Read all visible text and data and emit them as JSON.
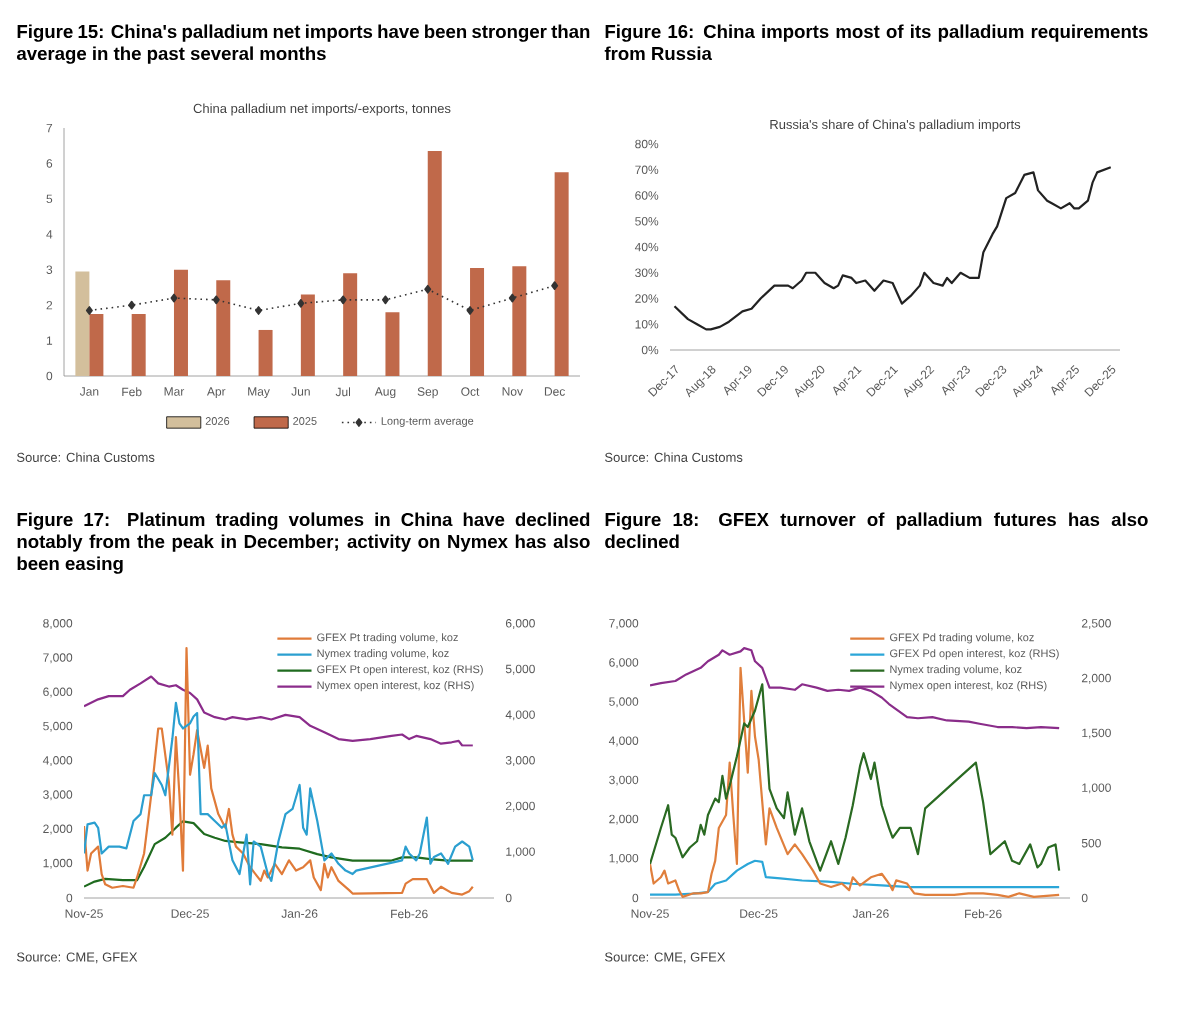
{
  "chart_data": [
    {
      "type": "bar",
      "title": "Figure 15: China's palladium net imports have been stronger than average in the past several months",
      "subtitle": "China palladium net imports/-exports, tonnes",
      "categories": [
        "Jan",
        "Feb",
        "Mar",
        "Apr",
        "May",
        "Jun",
        "Jul",
        "Aug",
        "Sep",
        "Oct",
        "Nov",
        "Dec"
      ],
      "series": [
        {
          "name": "2026",
          "color": "#d3bf9c",
          "values": [
            2.95,
            null,
            null,
            null,
            null,
            null,
            null,
            null,
            null,
            null,
            null,
            null
          ]
        },
        {
          "name": "2025",
          "color": "#c0694a",
          "values": [
            1.75,
            1.75,
            3.0,
            2.7,
            1.3,
            2.3,
            2.9,
            1.8,
            6.35,
            3.05,
            3.1,
            5.75
          ]
        },
        {
          "name": "Long-term average",
          "type": "line",
          "color": "#333333",
          "marker": "diamond",
          "line_style": "dotted",
          "values": [
            1.85,
            2.0,
            2.2,
            2.15,
            1.85,
            2.05,
            2.15,
            2.15,
            2.45,
            1.85,
            2.2,
            2.55
          ]
        }
      ],
      "ylim": [
        0,
        7
      ],
      "yticks": [
        0,
        1,
        2,
        3,
        4,
        5,
        6,
        7
      ],
      "legend": "bottom",
      "annotations": [
        "Source: China Customs"
      ]
    },
    {
      "type": "line",
      "title": "Figure 16: China imports most of its palladium requirements from Russia",
      "subtitle": "Russia's share of China's palladium imports",
      "x": [
        "2017-12",
        "2018-03",
        "2018-05",
        "2018-07",
        "2018-08",
        "2018-10",
        "2018-12",
        "2019-03",
        "2019-05",
        "2019-07",
        "2019-10",
        "2020-01",
        "2020-02",
        "2020-04",
        "2020-05",
        "2020-07",
        "2020-09",
        "2020-11",
        "2020-12",
        "2021-01",
        "2021-03",
        "2021-04",
        "2021-06",
        "2021-08",
        "2021-10",
        "2021-12",
        "2022-02",
        "2022-04",
        "2022-06",
        "2022-07",
        "2022-09",
        "2022-11",
        "2022-12",
        "2023-01",
        "2023-03",
        "2023-05",
        "2023-07",
        "2023-08",
        "2023-10",
        "2023-11",
        "2024-01",
        "2024-03",
        "2024-05",
        "2024-07",
        "2024-08",
        "2024-10",
        "2024-11",
        "2025-01",
        "2025-03",
        "2025-04",
        "2025-05",
        "2025-07",
        "2025-08",
        "2025-09",
        "2025-12"
      ],
      "series": [
        {
          "color": "#222222",
          "values": [
            17,
            12,
            10,
            8,
            8,
            9,
            11,
            15,
            16,
            20,
            25,
            25,
            24,
            27,
            30,
            30,
            26,
            24,
            25,
            29,
            28,
            26,
            27,
            23,
            27,
            26,
            18,
            21,
            25,
            30,
            26,
            25,
            28,
            26,
            30,
            28,
            28,
            38,
            45,
            48,
            59,
            61,
            68,
            69,
            62,
            58,
            57,
            55,
            57,
            55,
            55,
            58,
            65,
            69,
            71
          ]
        }
      ],
      "xlim": [
        "2017-11",
        "2026-02"
      ],
      "xticks": [
        {
          "value": "2017-12",
          "label": "Dec-17"
        },
        {
          "value": "2018-08",
          "label": "Aug-18"
        },
        {
          "value": "2019-04",
          "label": "Apr-19"
        },
        {
          "value": "2019-12",
          "label": "Dec-19"
        },
        {
          "value": "2020-08",
          "label": "Aug-20"
        },
        {
          "value": "2021-04",
          "label": "Apr-21"
        },
        {
          "value": "2021-12",
          "label": "Dec-21"
        },
        {
          "value": "2022-08",
          "label": "Aug-22"
        },
        {
          "value": "2023-04",
          "label": "Apr-23"
        },
        {
          "value": "2023-12",
          "label": "Dec-23"
        },
        {
          "value": "2024-08",
          "label": "Aug-24"
        },
        {
          "value": "2025-04",
          "label": "Apr-25"
        },
        {
          "value": "2025-12",
          "label": "Dec-25"
        }
      ],
      "ylim": [
        0,
        80
      ],
      "yticks": [
        {
          "value": 0,
          "label": "0%"
        },
        {
          "value": 10,
          "label": "10%"
        },
        {
          "value": 20,
          "label": "20%"
        },
        {
          "value": 30,
          "label": "30%"
        },
        {
          "value": 40,
          "label": "40%"
        },
        {
          "value": 50,
          "label": "50%"
        },
        {
          "value": 60,
          "label": "60%"
        },
        {
          "value": 70,
          "label": "70%"
        },
        {
          "value": 80,
          "label": "80%"
        }
      ],
      "annotations": [
        "Source: China Customs"
      ]
    },
    {
      "type": "line",
      "title": "Figure 17: Platinum trading volumes in China have declined notably from the peak in December; activity on Nymex has also been easing",
      "series": [
        {
          "name": "GFEX Pt trading volume, koz",
          "color": "#e07b39",
          "x": [
            "2025-11-01",
            "2025-11-02",
            "2025-11-03",
            "2025-11-05",
            "2025-11-06",
            "2025-11-07",
            "2025-11-09",
            "2025-11-12",
            "2025-11-15",
            "2025-11-16",
            "2025-11-18",
            "2025-11-20",
            "2025-11-22",
            "2025-11-23",
            "2025-11-25",
            "2025-11-26",
            "2025-11-27",
            "2025-11-28",
            "2025-11-29",
            "2025-11-30",
            "2025-12-01",
            "2025-12-02",
            "2025-12-03",
            "2025-12-05",
            "2025-12-06",
            "2025-12-07",
            "2025-12-09",
            "2025-12-11",
            "2025-12-12",
            "2025-12-13",
            "2025-12-14",
            "2025-12-16",
            "2025-12-18",
            "2025-12-21",
            "2025-12-22",
            "2025-12-23",
            "2025-12-25",
            "2025-12-27",
            "2025-12-29",
            "2025-12-31",
            "2026-01-02",
            "2026-01-04",
            "2026-01-05",
            "2026-01-07",
            "2026-01-08",
            "2026-01-09",
            "2026-01-10",
            "2026-01-12",
            "2026-01-15",
            "2026-01-16",
            "2026-01-30",
            "2026-01-31",
            "2026-02-02",
            "2026-02-06",
            "2026-02-08",
            "2026-02-10",
            "2026-02-13",
            "2026-02-16",
            "2026-02-18",
            "2026-02-19"
          ],
          "values": [
            2100,
            800,
            1300,
            1500,
            700,
            400,
            300,
            350,
            300,
            600,
            1300,
            3000,
            4950,
            4950,
            3400,
            1850,
            4700,
            3000,
            800,
            7300,
            3600,
            4200,
            4900,
            3800,
            4450,
            3200,
            2450,
            2050,
            2600,
            1850,
            1500,
            1300,
            900,
            500,
            800,
            600,
            1000,
            700,
            1100,
            800,
            900,
            1100,
            600,
            230,
            1000,
            600,
            900,
            500,
            230,
            130,
            150,
            420,
            550,
            550,
            150,
            330,
            150,
            100,
            200,
            330
          ]
        },
        {
          "name": "Nymex trading volume, koz",
          "color": "#2b9fd0",
          "x": [
            "2025-11-01",
            "2025-11-02",
            "2025-11-04",
            "2025-11-05",
            "2025-11-06",
            "2025-11-08",
            "2025-11-11",
            "2025-11-13",
            "2025-11-15",
            "2025-11-17",
            "2025-11-18",
            "2025-11-20",
            "2025-11-21",
            "2025-11-23",
            "2025-11-24",
            "2025-11-26",
            "2025-11-27",
            "2025-11-28",
            "2025-11-29",
            "2025-12-01",
            "2025-12-02",
            "2025-12-03",
            "2025-12-04",
            "2025-12-06",
            "2025-12-08",
            "2025-12-10",
            "2025-12-11",
            "2025-12-13",
            "2025-12-15",
            "2025-12-17",
            "2025-12-18",
            "2025-12-19",
            "2025-12-21",
            "2025-12-23",
            "2025-12-24",
            "2025-12-26",
            "2025-12-28",
            "2025-12-30",
            "2026-01-01",
            "2026-01-02",
            "2026-01-03",
            "2026-01-04",
            "2026-01-06",
            "2026-01-08",
            "2026-01-10",
            "2026-01-12",
            "2026-01-14",
            "2026-01-16",
            "2026-01-17",
            "2026-01-30",
            "2026-01-31",
            "2026-02-01",
            "2026-02-03",
            "2026-02-04",
            "2026-02-06",
            "2026-02-07",
            "2026-02-08",
            "2026-02-10",
            "2026-02-12",
            "2026-02-14",
            "2026-02-16",
            "2026-02-18",
            "2026-02-19"
          ],
          "values": [
            1300,
            2150,
            2200,
            2050,
            1300,
            1500,
            1500,
            1450,
            2250,
            2450,
            3000,
            3000,
            3650,
            3300,
            3000,
            4650,
            5700,
            5100,
            4950,
            5100,
            5300,
            5400,
            2450,
            2450,
            2250,
            2050,
            2150,
            1100,
            700,
            1850,
            400,
            1650,
            1500,
            700,
            500,
            1650,
            2450,
            2600,
            3300,
            2050,
            1850,
            3200,
            2250,
            1100,
            1300,
            1000,
            800,
            700,
            800,
            1100,
            1500,
            1300,
            1100,
            1300,
            2350,
            1000,
            1200,
            1300,
            1000,
            1500,
            1650,
            1500,
            1100
          ]
        },
        {
          "name": "GFEX Pt open interest, koz (RHS)",
          "color": "#1f6b1f",
          "axis": "y2",
          "x": [
            "2025-11-01",
            "2025-11-04",
            "2025-11-07",
            "2025-11-12",
            "2025-11-16",
            "2025-11-18",
            "2025-11-21",
            "2025-11-24",
            "2025-11-27",
            "2025-11-29",
            "2025-12-02",
            "2025-12-05",
            "2025-12-08",
            "2025-12-11",
            "2025-12-15",
            "2025-12-21",
            "2025-12-27",
            "2026-01-01",
            "2026-01-06",
            "2026-01-10",
            "2026-01-16",
            "2026-01-21",
            "2026-01-27",
            "2026-01-30",
            "2026-02-03",
            "2026-02-07",
            "2026-02-12",
            "2026-02-19"
          ],
          "values": [
            250,
            360,
            420,
            390,
            390,
            680,
            1180,
            1320,
            1540,
            1680,
            1640,
            1400,
            1320,
            1250,
            1220,
            1180,
            1110,
            1080,
            960,
            890,
            820,
            820,
            820,
            890,
            890,
            850,
            820,
            820
          ]
        },
        {
          "name": "Nymex open interest, koz (RHS)",
          "color": "#8b2c8b",
          "axis": "y2",
          "x": [
            "2025-11-01",
            "2025-11-05",
            "2025-11-08",
            "2025-11-12",
            "2025-11-14",
            "2025-11-17",
            "2025-11-20",
            "2025-11-22",
            "2025-11-25",
            "2025-11-27",
            "2025-11-29",
            "2025-12-01",
            "2025-12-03",
            "2025-12-05",
            "2025-12-08",
            "2025-12-11",
            "2025-12-13",
            "2025-12-17",
            "2025-12-21",
            "2025-12-24",
            "2025-12-28",
            "2026-01-01",
            "2026-01-04",
            "2026-01-08",
            "2026-01-12",
            "2026-01-16",
            "2026-01-21",
            "2026-01-27",
            "2026-01-30",
            "2026-02-01",
            "2026-02-03",
            "2026-02-07",
            "2026-02-10",
            "2026-02-13",
            "2026-02-15",
            "2026-02-16",
            "2026-02-19"
          ],
          "values": [
            4200,
            4350,
            4420,
            4420,
            4560,
            4700,
            4850,
            4700,
            4630,
            4660,
            4560,
            4490,
            4350,
            4060,
            3960,
            3910,
            3960,
            3910,
            3960,
            3910,
            4010,
            3960,
            3770,
            3630,
            3480,
            3440,
            3480,
            3550,
            3580,
            3480,
            3550,
            3480,
            3380,
            3410,
            3440,
            3340,
            3340
          ]
        }
      ],
      "xlim": [
        "2025-11-01",
        "2026-02-25"
      ],
      "xticks": [
        {
          "value": "2025-11-01",
          "label": "Nov-25"
        },
        {
          "value": "2025-12-01",
          "label": "Dec-25"
        },
        {
          "value": "2026-01-01",
          "label": "Jan-26"
        },
        {
          "value": "2026-02-01",
          "label": "Feb-26"
        }
      ],
      "ylim": [
        0,
        8000
      ],
      "yticks": [
        0,
        {
          "value": 1000,
          "label": "1,000"
        },
        {
          "value": 2000,
          "label": "2,000"
        },
        {
          "value": 3000,
          "label": "3,000"
        },
        {
          "value": 4000,
          "label": "4,000"
        },
        {
          "value": 5000,
          "label": "5,000"
        },
        {
          "value": 6000,
          "label": "6,000"
        },
        {
          "value": 7000,
          "label": "7,000"
        },
        {
          "value": 8000,
          "label": "8,000"
        }
      ],
      "y2lim": [
        0,
        6000
      ],
      "y2ticks": [
        0,
        {
          "value": 1000,
          "label": "1,000"
        },
        {
          "value": 2000,
          "label": "2,000"
        },
        {
          "value": 3000,
          "label": "3,000"
        },
        {
          "value": 4000,
          "label": "4,000"
        },
        {
          "value": 5000,
          "label": "5,000"
        },
        {
          "value": 6000,
          "label": "6,000"
        }
      ],
      "legend": "top right",
      "annotations": [
        "Source: CME, GFEX"
      ]
    },
    {
      "type": "line",
      "title": "Figure 18: GFEX turnover of palladium futures has also declined",
      "series": [
        {
          "name": "GFEX Pd trading volume, koz",
          "color": "#e07f3c",
          "x": [
            "2025-11-01",
            "2025-11-02",
            "2025-11-04",
            "2025-11-05",
            "2025-11-06",
            "2025-11-08",
            "2025-11-09",
            "2025-11-10",
            "2025-11-13",
            "2025-11-15",
            "2025-11-17",
            "2025-11-18",
            "2025-11-19",
            "2025-11-20",
            "2025-11-22",
            "2025-11-23",
            "2025-11-24",
            "2025-11-25",
            "2025-11-26",
            "2025-11-28",
            "2025-11-29",
            "2025-11-30",
            "2025-12-01",
            "2025-12-03",
            "2025-12-04",
            "2025-12-06",
            "2025-12-09",
            "2025-12-11",
            "2025-12-13",
            "2025-12-16",
            "2025-12-18",
            "2025-12-21",
            "2025-12-24",
            "2025-12-26",
            "2025-12-27",
            "2025-12-29",
            "2026-01-01",
            "2026-01-04",
            "2026-01-06",
            "2026-01-07",
            "2026-01-08",
            "2026-01-11",
            "2026-01-13",
            "2026-01-16",
            "2026-01-24",
            "2026-01-28",
            "2026-02-01",
            "2026-02-05",
            "2026-02-08",
            "2026-02-11",
            "2026-02-15",
            "2026-02-22"
          ],
          "values": [
            870,
            370,
            530,
            700,
            370,
            450,
            200,
            30,
            120,
            120,
            150,
            620,
            950,
            1790,
            2120,
            3460,
            2120,
            870,
            5880,
            3200,
            5290,
            4120,
            3540,
            1370,
            2290,
            1790,
            1120,
            1370,
            1120,
            700,
            370,
            280,
            370,
            200,
            530,
            320,
            530,
            620,
            370,
            200,
            450,
            370,
            120,
            80,
            80,
            120,
            120,
            80,
            30,
            120,
            30,
            80
          ]
        },
        {
          "name": "GFEX Pd open interest, koz (RHS)",
          "color": "#2ba6d8",
          "axis": "y2",
          "x": [
            "2025-11-01",
            "2025-11-08",
            "2025-11-13",
            "2025-11-17",
            "2025-11-19",
            "2025-11-22",
            "2025-11-24",
            "2025-11-25",
            "2025-11-28",
            "2025-11-30",
            "2025-12-02",
            "2025-12-03",
            "2025-12-07",
            "2025-12-13",
            "2025-12-20",
            "2025-12-27",
            "2026-01-04",
            "2026-01-12",
            "2026-01-24",
            "2026-02-05",
            "2026-02-22"
          ],
          "values": [
            30,
            30,
            40,
            55,
            130,
            160,
            220,
            250,
            310,
            340,
            330,
            190,
            180,
            160,
            150,
            130,
            115,
            100,
            100,
            100,
            100
          ]
        },
        {
          "name": "Nymex trading volume, koz",
          "color": "#2a6a22",
          "x": [
            "2025-11-01",
            "2025-11-04",
            "2025-11-06",
            "2025-11-07",
            "2025-11-08",
            "2025-11-10",
            "2025-11-12",
            "2025-11-14",
            "2025-11-15",
            "2025-11-16",
            "2025-11-17",
            "2025-11-19",
            "2025-11-20",
            "2025-11-21",
            "2025-11-22",
            "2025-11-23",
            "2025-11-25",
            "2025-11-27",
            "2025-11-28",
            "2025-11-30",
            "2025-12-02",
            "2025-12-04",
            "2025-12-06",
            "2025-12-08",
            "2025-12-09",
            "2025-12-11",
            "2025-12-13",
            "2025-12-15",
            "2025-12-18",
            "2025-12-20",
            "2025-12-21",
            "2025-12-23",
            "2025-12-25",
            "2025-12-27",
            "2025-12-29",
            "2025-12-30",
            "2026-01-01",
            "2026-01-02",
            "2026-01-04",
            "2026-01-06",
            "2026-01-07",
            "2026-01-09",
            "2026-01-12",
            "2026-01-14",
            "2026-01-16",
            "2026-01-24",
            "2026-01-30",
            "2026-02-01",
            "2026-02-03",
            "2026-02-07",
            "2026-02-09",
            "2026-02-11",
            "2026-02-14",
            "2026-02-16",
            "2026-02-17",
            "2026-02-19",
            "2026-02-21",
            "2026-02-22"
          ],
          "values": [
            870,
            1790,
            2370,
            1620,
            1540,
            1040,
            1290,
            1450,
            1870,
            1620,
            2120,
            2540,
            2450,
            3120,
            2540,
            2870,
            3620,
            4460,
            4370,
            4790,
            5460,
            2790,
            2290,
            2040,
            2700,
            1620,
            2290,
            1450,
            700,
            1200,
            1450,
            870,
            1540,
            2370,
            3370,
            3700,
            3040,
            3460,
            2370,
            1790,
            1540,
            1790,
            1790,
            1120,
            2290,
            2960,
            3460,
            2450,
            1120,
            1450,
            950,
            870,
            1370,
            780,
            870,
            1290,
            1370,
            700
          ]
        },
        {
          "name": "Nymex open interest, koz (RHS)",
          "color": "#8a2d8a",
          "axis": "y2",
          "x": [
            "2025-11-01",
            "2025-11-04",
            "2025-11-08",
            "2025-11-11",
            "2025-11-15",
            "2025-11-17",
            "2025-11-20",
            "2025-11-21",
            "2025-11-23",
            "2025-11-26",
            "2025-11-27",
            "2025-11-29",
            "2025-11-30",
            "2025-12-02",
            "2025-12-04",
            "2025-12-07",
            "2025-12-11",
            "2025-12-13",
            "2025-12-17",
            "2025-12-20",
            "2025-12-23",
            "2025-12-26",
            "2025-12-29",
            "2026-01-01",
            "2026-01-04",
            "2026-01-06",
            "2026-01-11",
            "2026-01-14",
            "2026-01-18",
            "2026-01-22",
            "2026-01-28",
            "2026-01-31",
            "2026-02-05",
            "2026-02-09",
            "2026-02-13",
            "2026-02-17",
            "2026-02-22"
          ],
          "values": [
            1940,
            1960,
            1980,
            2040,
            2100,
            2160,
            2220,
            2260,
            2220,
            2250,
            2280,
            2260,
            2160,
            2100,
            1920,
            1920,
            1900,
            1950,
            1920,
            1890,
            1900,
            1890,
            1920,
            1890,
            1830,
            1770,
            1650,
            1640,
            1650,
            1620,
            1610,
            1590,
            1560,
            1560,
            1550,
            1560,
            1550
          ]
        }
      ],
      "xlim": [
        "2025-11-01",
        "2026-02-25"
      ],
      "xticks": [
        {
          "value": "2025-11-01",
          "label": "Nov-25"
        },
        {
          "value": "2025-12-01",
          "label": "Dec-25"
        },
        {
          "value": "2026-01-01",
          "label": "Jan-26"
        },
        {
          "value": "2026-02-01",
          "label": "Feb-26"
        }
      ],
      "ylim": [
        0,
        7000
      ],
      "yticks": [
        0,
        {
          "value": 1000,
          "label": "1,000"
        },
        {
          "value": 2000,
          "label": "2,000"
        },
        {
          "value": 3000,
          "label": "3,000"
        },
        {
          "value": 4000,
          "label": "4,000"
        },
        {
          "value": 5000,
          "label": "5,000"
        },
        {
          "value": 6000,
          "label": "6,000"
        },
        {
          "value": 7000,
          "label": "7,000"
        }
      ],
      "y2lim": [
        0,
        2500
      ],
      "y2ticks": [
        0,
        500,
        {
          "value": 1000,
          "label": "1,000"
        },
        {
          "value": 1500,
          "label": "1,500"
        },
        {
          "value": 2000,
          "label": "2,000"
        },
        {
          "value": 2500,
          "label": "2,500"
        }
      ],
      "legend": "top right",
      "annotations": [
        "Source: CME, GFEX"
      ]
    }
  ]
}
